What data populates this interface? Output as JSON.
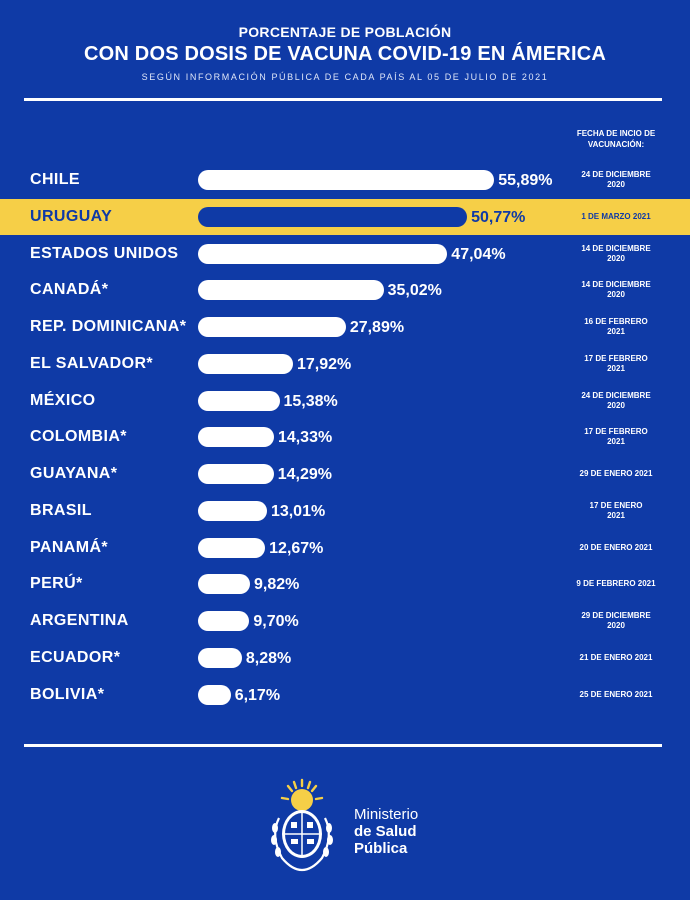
{
  "header": {
    "line1": "PORCENTAJE DE POBLACIÓN",
    "line2": "CON DOS DOSIS DE VACUNA COVID-19 EN ÁMERICA",
    "line3": "SEGÚN INFORMACIÓN PÚBLICA DE CADA PAÍS AL 05 DE JULIO DE 2021"
  },
  "date_column_header": "FECHA DE INCIO DE VACUNACIÓN:",
  "colors": {
    "background": "#0f3aa6",
    "bar": "#ffffff",
    "highlight_row": "#f6cf47",
    "highlight_bar": "#0f3aa6"
  },
  "chart_data": {
    "type": "bar",
    "orientation": "horizontal",
    "categories": [
      "CHILE",
      "URUGUAY",
      "ESTADOS UNIDOS",
      "CANADÁ*",
      "REP. DOMINICANA*",
      "EL SALVADOR*",
      "MÉXICO",
      "COLOMBIA*",
      "GUAYANA*",
      "BRASIL",
      "PANAMÁ*",
      "PERÚ*",
      "ARGENTINA",
      "ECUADOR*",
      "BOLIVIA*"
    ],
    "values": [
      55.89,
      50.77,
      47.04,
      35.02,
      27.89,
      17.92,
      15.38,
      14.33,
      14.29,
      13.01,
      12.67,
      9.82,
      9.7,
      8.28,
      6.17
    ],
    "value_labels": [
      "55,89%",
      "50,77%",
      "47,04%",
      "35,02%",
      "27,89%",
      "17,92%",
      "15,38%",
      "14,33%",
      "14,29%",
      "13,01%",
      "12,67%",
      "9,82%",
      "9,70%",
      "8,28%",
      "6,17%"
    ],
    "start_dates": [
      [
        "24 DE DICIEMBRE",
        "2020"
      ],
      [
        "1 DE MARZO 2021"
      ],
      [
        "14 DE DICIEMBRE",
        "2020"
      ],
      [
        "14 DE DICIEMBRE",
        "2020"
      ],
      [
        "16 DE FEBRERO",
        "2021"
      ],
      [
        "17 DE FEBRERO",
        "2021"
      ],
      [
        "24 DE DICIEMBRE",
        "2020"
      ],
      [
        "17 DE FEBRERO",
        "2021"
      ],
      [
        "29 DE ENERO 2021"
      ],
      [
        "17 DE ENERO",
        "2021"
      ],
      [
        "20 DE ENERO 2021"
      ],
      [
        "9 DE FEBRERO 2021"
      ],
      [
        "29 DE DICIEMBRE",
        "2020"
      ],
      [
        "21 DE ENERO 2021"
      ],
      [
        "25 DE ENERO 2021"
      ]
    ],
    "highlight": "URUGUAY",
    "grid": false,
    "legend": "none"
  },
  "footer": {
    "logo_icon": "uruguay-coat-of-arms-icon",
    "ministry_line1": "Ministerio",
    "ministry_line2": "de Salud",
    "ministry_line3": "Pública"
  }
}
